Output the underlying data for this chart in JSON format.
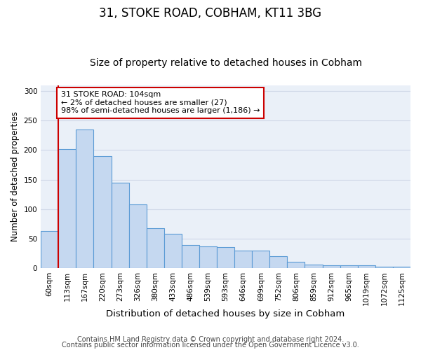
{
  "title1": "31, STOKE ROAD, COBHAM, KT11 3BG",
  "title2": "Size of property relative to detached houses in Cobham",
  "xlabel": "Distribution of detached houses by size in Cobham",
  "ylabel": "Number of detached properties",
  "categories": [
    "60sqm",
    "113sqm",
    "167sqm",
    "220sqm",
    "273sqm",
    "326sqm",
    "380sqm",
    "433sqm",
    "486sqm",
    "539sqm",
    "593sqm",
    "646sqm",
    "699sqm",
    "752sqm",
    "806sqm",
    "859sqm",
    "912sqm",
    "965sqm",
    "1019sqm",
    "1072sqm",
    "1125sqm"
  ],
  "values": [
    63,
    202,
    235,
    190,
    145,
    108,
    67,
    58,
    39,
    37,
    36,
    30,
    30,
    20,
    10,
    6,
    5,
    5,
    4,
    2,
    2
  ],
  "bar_color": "#c5d8f0",
  "bar_edge_color": "#5b9bd5",
  "annotation_text_line1": "31 STOKE ROAD: 104sqm",
  "annotation_text_line2": "← 2% of detached houses are smaller (27)",
  "annotation_text_line3": "98% of semi-detached houses are larger (1,186) →",
  "annotation_box_color": "#ffffff",
  "annotation_box_edge_color": "#cc0000",
  "vline_color": "#cc0000",
  "vline_x_index": 0.5,
  "ylim": [
    0,
    310
  ],
  "yticks": [
    0,
    50,
    100,
    150,
    200,
    250,
    300
  ],
  "grid_color": "#d0d8e8",
  "background_color": "#eaf0f8",
  "footer1": "Contains HM Land Registry data © Crown copyright and database right 2024.",
  "footer2": "Contains public sector information licensed under the Open Government Licence v3.0.",
  "title1_fontsize": 12,
  "title2_fontsize": 10,
  "xlabel_fontsize": 9.5,
  "ylabel_fontsize": 8.5,
  "tick_fontsize": 7.5,
  "annotation_fontsize": 8,
  "footer_fontsize": 7
}
